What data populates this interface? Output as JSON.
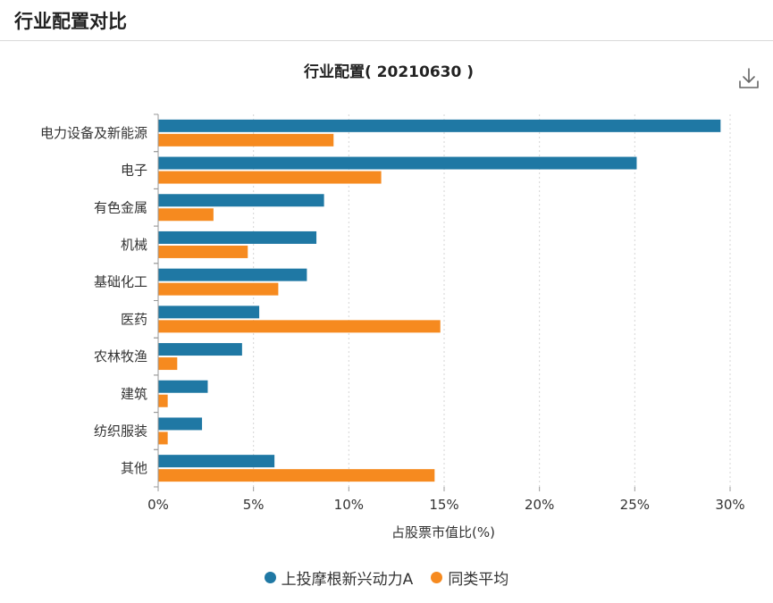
{
  "header": {
    "title": "行业配置对比"
  },
  "toolbar": {
    "download_icon": "download-icon"
  },
  "chart_data": {
    "type": "bar",
    "orientation": "horizontal",
    "title": "行业配置( 20210630 )",
    "xlabel": "占股票市值比(%)",
    "ylabel": "",
    "xlim": [
      0,
      30
    ],
    "xticks": [
      0,
      5,
      10,
      15,
      20,
      25,
      30
    ],
    "xtick_labels": [
      "0%",
      "5%",
      "10%",
      "15%",
      "20%",
      "25%",
      "30%"
    ],
    "categories": [
      "电力设备及新能源",
      "电子",
      "有色金属",
      "机械",
      "基础化工",
      "医药",
      "农林牧渔",
      "建筑",
      "纺织服装",
      "其他"
    ],
    "series": [
      {
        "name": "上投摩根新兴动力A",
        "color": "#1f78a4",
        "values": [
          29.5,
          25.1,
          8.7,
          8.3,
          7.8,
          5.3,
          4.4,
          2.6,
          2.3,
          6.1
        ]
      },
      {
        "name": "同类平均",
        "color": "#f68a1f",
        "values": [
          9.2,
          11.7,
          2.9,
          4.7,
          6.3,
          14.8,
          1.0,
          0.5,
          0.5,
          14.5
        ]
      }
    ],
    "grid": true,
    "grid_axis": "x",
    "legend_position": "bottom-center"
  }
}
